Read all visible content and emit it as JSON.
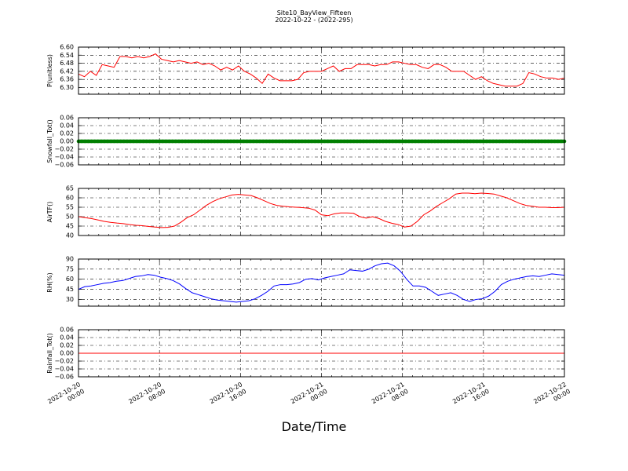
{
  "figure": {
    "title": "Site10_BayView_Fifteen",
    "subtitle": "2022-10-22 - (2022-295)",
    "xlabel": "Date/Time"
  },
  "chart_data": [
    {
      "type": "line",
      "ylabel": "P(unitless)",
      "ylim": [
        6.25,
        6.6
      ],
      "yticks": [
        "6.60",
        "6.54",
        "6.48",
        "6.42",
        "6.36",
        "6.30"
      ],
      "ytick_values": [
        6.6,
        6.54,
        6.48,
        6.42,
        6.36,
        6.3
      ],
      "grid": true,
      "series": [
        {
          "color": "#ff0000",
          "values": [
            6.4,
            6.38,
            6.42,
            6.39,
            6.47,
            6.46,
            6.45,
            6.53,
            6.53,
            6.52,
            6.53,
            6.52,
            6.53,
            6.55,
            6.51,
            6.5,
            6.49,
            6.5,
            6.49,
            6.48,
            6.49,
            6.47,
            6.48,
            6.46,
            6.43,
            6.45,
            6.43,
            6.46,
            6.42,
            6.4,
            6.37,
            6.33,
            6.4,
            6.37,
            6.35,
            6.35,
            6.35,
            6.36,
            6.41,
            6.42,
            6.42,
            6.42,
            6.44,
            6.46,
            6.42,
            6.44,
            6.44,
            6.47,
            6.47,
            6.47,
            6.46,
            6.47,
            6.47,
            6.49,
            6.49,
            6.48,
            6.47,
            6.47,
            6.45,
            6.44,
            6.47,
            6.47,
            6.45,
            6.42,
            6.42,
            6.42,
            6.39,
            6.36,
            6.38,
            6.35,
            6.33,
            6.32,
            6.31,
            6.31,
            6.31,
            6.33,
            6.41,
            6.4,
            6.38,
            6.37,
            6.37,
            6.36,
            6.37
          ]
        }
      ]
    },
    {
      "type": "line",
      "ylabel": "Snowfall_Tot()",
      "ylim": [
        -0.06,
        0.06
      ],
      "yticks": [
        "0.06",
        "0.04",
        "0.02",
        "0.00",
        "−0.02",
        "−0.04",
        "−0.06"
      ],
      "ytick_values": [
        0.06,
        0.04,
        0.02,
        0.0,
        -0.02,
        -0.04,
        -0.06
      ],
      "grid": true,
      "series": [
        {
          "color": "#007f00",
          "marker": "dot",
          "values": [
            0,
            0
          ]
        }
      ]
    },
    {
      "type": "line",
      "ylabel": "AirTF()",
      "ylim": [
        40,
        65
      ],
      "yticks": [
        "65",
        "60",
        "55",
        "50",
        "45",
        "40"
      ],
      "ytick_values": [
        65,
        60,
        55,
        50,
        45,
        40
      ],
      "grid": true,
      "series": [
        {
          "color": "#ff0000",
          "values": [
            50.0,
            49.5,
            49.0,
            48.3,
            47.5,
            47.0,
            46.6,
            46.3,
            45.8,
            45.4,
            45.2,
            44.8,
            44.5,
            44.2,
            44.3,
            45.0,
            47.0,
            49.5,
            51.0,
            53.5,
            56.0,
            58.0,
            59.5,
            60.5,
            61.5,
            61.8,
            61.5,
            61.2,
            60.0,
            58.5,
            57.0,
            56.0,
            55.5,
            55.2,
            55.0,
            54.8,
            54.5,
            53.5,
            51.0,
            50.5,
            51.5,
            52.0,
            52.0,
            51.8,
            50.0,
            49.2,
            50.0,
            49.0,
            47.5,
            46.5,
            45.8,
            44.5,
            45.0,
            47.5,
            51.0,
            53.0,
            55.5,
            57.5,
            59.5,
            62.0,
            62.5,
            62.5,
            62.2,
            62.5,
            62.3,
            62.0,
            61.0,
            60.0,
            58.5,
            57.0,
            56.0,
            55.5,
            55.0,
            55.0,
            54.8,
            54.8,
            55.0
          ]
        }
      ]
    },
    {
      "type": "line",
      "ylabel": "RH(%)",
      "ylim": [
        20,
        90
      ],
      "yticks": [
        "90",
        "75",
        "60",
        "45",
        "30"
      ],
      "ytick_values": [
        90,
        75,
        60,
        45,
        30
      ],
      "grid": true,
      "series": [
        {
          "color": "#0000ff",
          "values": [
            45,
            49,
            50,
            52,
            54,
            55,
            57,
            58,
            61,
            64,
            65,
            67,
            66,
            63,
            61,
            58,
            53,
            46,
            40,
            37,
            34,
            31,
            29,
            28,
            27,
            26,
            27,
            28,
            31,
            36,
            42,
            50,
            52,
            52,
            53,
            55,
            60,
            61,
            59,
            62,
            64,
            66,
            68,
            74,
            73,
            72,
            75,
            80,
            83,
            84,
            80,
            72,
            60,
            50,
            50,
            48,
            42,
            36,
            38,
            40,
            36,
            30,
            27,
            30,
            31,
            35,
            42,
            52,
            57,
            60,
            62,
            64,
            65,
            64,
            66,
            68,
            67,
            66
          ]
        }
      ]
    },
    {
      "type": "line",
      "ylabel": "Rainfall_Tot()",
      "ylim": [
        -0.06,
        0.06
      ],
      "yticks": [
        "0.06",
        "0.04",
        "0.02",
        "0.00",
        "−0.02",
        "−0.04",
        "−0.06"
      ],
      "ytick_values": [
        0.06,
        0.04,
        0.02,
        0.0,
        -0.02,
        -0.04,
        -0.06
      ],
      "grid": true,
      "series": [
        {
          "color": "#ff0000",
          "values": [
            0,
            0
          ]
        }
      ]
    }
  ],
  "xaxis": {
    "ticks": [
      [
        "2022-10-20",
        "00:00"
      ],
      [
        "2022-10-20",
        "08:00"
      ],
      [
        "2022-10-20",
        "16:00"
      ],
      [
        "2022-10-21",
        "00:00"
      ],
      [
        "2022-10-21",
        "08:00"
      ],
      [
        "2022-10-21",
        "16:00"
      ],
      [
        "2022-10-22",
        "00:00"
      ]
    ]
  }
}
